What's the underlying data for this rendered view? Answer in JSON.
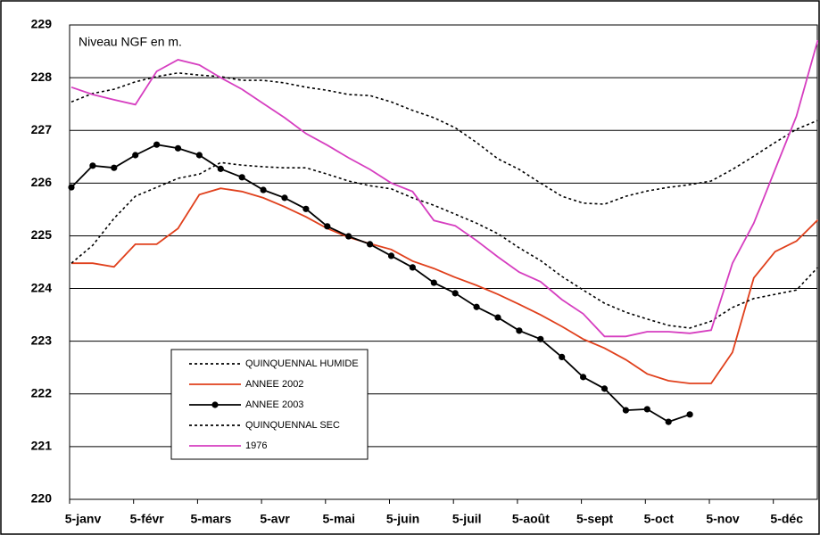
{
  "chart_data": {
    "type": "line",
    "annotation": "Niveau NGF en m.",
    "categories": [
      "5-janv",
      null,
      null,
      "5-févr",
      null,
      null,
      "5-mars",
      null,
      null,
      "5-avr",
      null,
      null,
      "5-mai",
      null,
      null,
      "5-juin",
      null,
      null,
      "5-juil",
      null,
      null,
      "5-août",
      null,
      null,
      "5-sept",
      null,
      null,
      "5-oct",
      null,
      null,
      "5-nov",
      null,
      null,
      "5-déc",
      null,
      null
    ],
    "ylim": [
      220,
      229
    ],
    "yticks": [
      220,
      221,
      222,
      223,
      224,
      225,
      226,
      227,
      228,
      229
    ],
    "grid": true,
    "series": [
      {
        "name": "QUINQUENNAL HUMIDE",
        "color": "#000000",
        "line_style": "dotted",
        "markers": false,
        "values": [
          227.54,
          227.7,
          227.78,
          227.92,
          228.02,
          228.09,
          228.05,
          228.02,
          227.95,
          227.95,
          227.9,
          227.82,
          227.76,
          227.68,
          227.66,
          227.54,
          227.38,
          227.24,
          227.05,
          226.77,
          226.46,
          226.26,
          226.0,
          225.75,
          225.62,
          225.6,
          225.75,
          225.85,
          225.92,
          225.97,
          226.04,
          226.26,
          226.51,
          226.77,
          227.02,
          227.19
        ]
      },
      {
        "name": "ANNEE 2002",
        "color": "#e0401c",
        "line_style": "solid",
        "markers": false,
        "values": [
          224.48,
          224.48,
          224.41,
          224.84,
          224.84,
          225.14,
          225.78,
          225.9,
          225.84,
          225.72,
          225.55,
          225.36,
          225.14,
          224.97,
          224.85,
          224.74,
          224.52,
          224.38,
          224.21,
          224.06,
          223.89,
          223.7,
          223.5,
          223.28,
          223.04,
          222.87,
          222.65,
          222.38,
          222.25,
          222.2,
          222.2,
          222.79,
          224.2,
          224.7,
          224.9,
          225.3
        ]
      },
      {
        "name": "ANNEE 2003",
        "color": "#000000",
        "line_style": "solid",
        "markers": true,
        "values": [
          225.92,
          226.33,
          226.29,
          226.53,
          226.73,
          226.66,
          226.53,
          226.27,
          226.11,
          225.87,
          225.72,
          225.51,
          225.18,
          224.99,
          224.84,
          224.62,
          224.4,
          224.11,
          223.91,
          223.65,
          223.45,
          223.2,
          223.04,
          222.7,
          222.32,
          222.1,
          221.69,
          221.71,
          221.47,
          221.61,
          null,
          null,
          null,
          null,
          null,
          null
        ]
      },
      {
        "name": "QUINQUENNAL SEC",
        "color": "#000000",
        "line_style": "dotted",
        "markers": false,
        "values": [
          224.48,
          224.82,
          225.33,
          225.75,
          225.92,
          226.09,
          226.17,
          226.39,
          226.34,
          226.31,
          226.29,
          226.29,
          226.17,
          226.04,
          225.95,
          225.89,
          225.72,
          225.58,
          225.41,
          225.24,
          225.04,
          224.77,
          224.53,
          224.23,
          223.97,
          223.72,
          223.55,
          223.42,
          223.3,
          223.25,
          223.38,
          223.64,
          223.81,
          223.89,
          223.97,
          224.4
        ]
      },
      {
        "name": "1976",
        "color": "#d63ec0",
        "line_style": "solid",
        "markers": false,
        "values": [
          227.82,
          227.68,
          227.58,
          227.49,
          228.12,
          228.34,
          228.24,
          228.0,
          227.78,
          227.51,
          227.24,
          226.94,
          226.72,
          226.48,
          226.26,
          226.0,
          225.84,
          225.29,
          225.19,
          224.91,
          224.6,
          224.31,
          224.13,
          223.79,
          223.52,
          223.09,
          223.09,
          223.18,
          223.18,
          223.15,
          223.21,
          224.48,
          225.24,
          226.26,
          227.27,
          228.71
        ]
      }
    ]
  }
}
